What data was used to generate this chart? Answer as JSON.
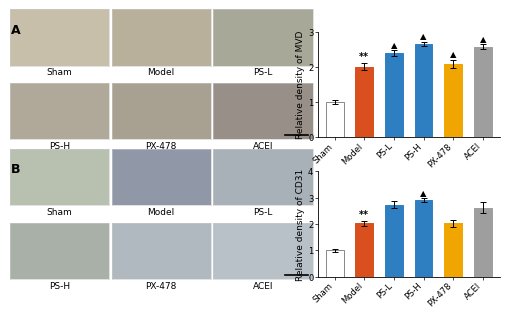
{
  "chart_A": {
    "title": "Relative density of MVD",
    "categories": [
      "Sham",
      "Model",
      "PS-L",
      "PS-H",
      "PX-478",
      "ACEI"
    ],
    "values": [
      1.0,
      2.0,
      2.38,
      2.65,
      2.08,
      2.57
    ],
    "errors": [
      0.05,
      0.09,
      0.08,
      0.06,
      0.12,
      0.07
    ],
    "colors": [
      "#ffffff",
      "#d94f1e",
      "#2e7fc1",
      "#2e7fc1",
      "#f0a500",
      "#9e9e9e"
    ],
    "edge_colors": [
      "#888888",
      "#d94f1e",
      "#2e7fc1",
      "#2e7fc1",
      "#f0a500",
      "#9e9e9e"
    ],
    "ylim": [
      0,
      3
    ],
    "yticks": [
      0,
      1,
      2,
      3
    ],
    "star_annot": "**",
    "triangle_indices": [
      2,
      3,
      4,
      5
    ]
  },
  "chart_B": {
    "title": "Relative density of CD31",
    "categories": [
      "Sham",
      "Model",
      "PS-L",
      "PS-H",
      "PX-478",
      "ACEI"
    ],
    "values": [
      1.0,
      2.02,
      2.73,
      2.9,
      2.02,
      2.62
    ],
    "errors": [
      0.06,
      0.09,
      0.12,
      0.07,
      0.12,
      0.2
    ],
    "colors": [
      "#ffffff",
      "#d94f1e",
      "#2e7fc1",
      "#2e7fc1",
      "#f0a500",
      "#9e9e9e"
    ],
    "edge_colors": [
      "#888888",
      "#d94f1e",
      "#2e7fc1",
      "#2e7fc1",
      "#f0a500",
      "#9e9e9e"
    ],
    "ylim": [
      0,
      4
    ],
    "yticks": [
      0,
      1,
      2,
      3,
      4
    ],
    "star_annot": "**",
    "triangle_indices": [
      3
    ]
  },
  "img_labels_A_row1": [
    "Sham",
    "Model",
    "PS-L"
  ],
  "img_labels_A_row2": [
    "PS-H",
    "PX-478",
    "ACEI"
  ],
  "img_labels_B_row1": [
    "Sham",
    "Model",
    "PS-L"
  ],
  "img_labels_B_row2": [
    "PS-H",
    "PX-478",
    "ACEI"
  ],
  "img_colors_A_row1": [
    "#c8bfaa",
    "#b8b09a",
    "#a8a898"
  ],
  "img_colors_A_row2": [
    "#b0a898",
    "#a8a090",
    "#989088"
  ],
  "img_colors_B_row1": [
    "#b8c0b0",
    "#9098a8",
    "#a8b0b8"
  ],
  "img_colors_B_row2": [
    "#a8b0a8",
    "#b0b8c0",
    "#b8c0c8"
  ],
  "label_fontsize": 6.5,
  "tick_fontsize": 6.0,
  "annot_fontsize": 7,
  "triangle_fontsize": 6,
  "bar_width": 0.6,
  "figure_bg": "#ffffff",
  "panel_label_fontsize": 9
}
